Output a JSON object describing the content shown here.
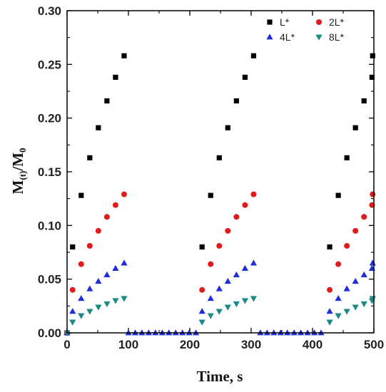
{
  "chart_data": {
    "type": "scatter",
    "xlabel": "Time, s",
    "ylabel_main": "M",
    "ylabel_sub1": "(t)",
    "ylabel_mid": "/M",
    "ylabel_sub2": "0",
    "xlim": [
      0,
      500
    ],
    "ylim": [
      0,
      0.3
    ],
    "xticks": [
      "0",
      "100",
      "200",
      "300",
      "400",
      "500"
    ],
    "yticks": [
      "0.00",
      "0.05",
      "0.10",
      "0.15",
      "0.20",
      "0.25",
      "0.30"
    ],
    "legend_position": "top-right",
    "series": [
      {
        "name": "L*",
        "marker": "square",
        "color": "#000000",
        "points": [
          [
            0,
            0
          ],
          [
            9,
            0.08
          ],
          [
            23,
            0.128
          ],
          [
            37,
            0.163
          ],
          [
            51,
            0.191
          ],
          [
            65,
            0.216
          ],
          [
            79,
            0.238
          ],
          [
            93,
            0.258
          ],
          [
            220,
            0.08
          ],
          [
            234,
            0.128
          ],
          [
            248,
            0.163
          ],
          [
            262,
            0.191
          ],
          [
            276,
            0.216
          ],
          [
            290,
            0.238
          ],
          [
            304,
            0.258
          ],
          [
            428,
            0.08
          ],
          [
            442,
            0.128
          ],
          [
            456,
            0.163
          ],
          [
            470,
            0.191
          ],
          [
            484,
            0.216
          ],
          [
            497,
            0.238
          ],
          [
            498,
            0.258
          ]
        ]
      },
      {
        "name": "2L*",
        "marker": "circle",
        "color": "#e01b1b",
        "points": [
          [
            0,
            0
          ],
          [
            9,
            0.04
          ],
          [
            23,
            0.064
          ],
          [
            37,
            0.081
          ],
          [
            51,
            0.095
          ],
          [
            65,
            0.108
          ],
          [
            79,
            0.119
          ],
          [
            93,
            0.129
          ],
          [
            220,
            0.04
          ],
          [
            234,
            0.064
          ],
          [
            248,
            0.081
          ],
          [
            262,
            0.095
          ],
          [
            276,
            0.108
          ],
          [
            290,
            0.119
          ],
          [
            304,
            0.129
          ],
          [
            428,
            0.04
          ],
          [
            442,
            0.064
          ],
          [
            456,
            0.081
          ],
          [
            470,
            0.095
          ],
          [
            484,
            0.108
          ],
          [
            497,
            0.119
          ],
          [
            498,
            0.129
          ]
        ]
      },
      {
        "name": "4L*",
        "marker": "triangle-up",
        "color": "#1f2fd6",
        "points": [
          [
            0,
            0
          ],
          [
            9,
            0.02
          ],
          [
            23,
            0.032
          ],
          [
            37,
            0.041
          ],
          [
            51,
            0.048
          ],
          [
            65,
            0.054
          ],
          [
            79,
            0.06
          ],
          [
            93,
            0.065
          ],
          [
            220,
            0.02
          ],
          [
            234,
            0.032
          ],
          [
            248,
            0.041
          ],
          [
            262,
            0.048
          ],
          [
            276,
            0.054
          ],
          [
            290,
            0.06
          ],
          [
            304,
            0.065
          ],
          [
            428,
            0.02
          ],
          [
            442,
            0.032
          ],
          [
            456,
            0.041
          ],
          [
            470,
            0.048
          ],
          [
            484,
            0.054
          ],
          [
            497,
            0.06
          ],
          [
            498,
            0.065
          ]
        ]
      },
      {
        "name": "8L*",
        "marker": "triangle-down",
        "color": "#1a8a86",
        "points": [
          [
            0,
            0
          ],
          [
            9,
            0.01
          ],
          [
            23,
            0.016
          ],
          [
            37,
            0.02
          ],
          [
            51,
            0.024
          ],
          [
            65,
            0.027
          ],
          [
            79,
            0.03
          ],
          [
            93,
            0.032
          ],
          [
            220,
            0.01
          ],
          [
            234,
            0.016
          ],
          [
            248,
            0.02
          ],
          [
            262,
            0.024
          ],
          [
            276,
            0.027
          ],
          [
            290,
            0.03
          ],
          [
            304,
            0.032
          ],
          [
            428,
            0.01
          ],
          [
            442,
            0.016
          ],
          [
            456,
            0.02
          ],
          [
            470,
            0.024
          ],
          [
            484,
            0.027
          ],
          [
            497,
            0.03
          ],
          [
            498,
            0.032
          ]
        ]
      },
      {
        "name": "",
        "marker": "triangle-up",
        "color": "#1f2fd6",
        "points": [
          [
            100,
            0
          ],
          [
            111,
            0
          ],
          [
            122,
            0
          ],
          [
            133,
            0
          ],
          [
            144,
            0
          ],
          [
            155,
            0
          ],
          [
            166,
            0
          ],
          [
            177,
            0
          ],
          [
            188,
            0
          ],
          [
            199,
            0
          ],
          [
            210,
            0
          ],
          [
            315,
            0
          ],
          [
            326,
            0
          ],
          [
            337,
            0
          ],
          [
            348,
            0
          ],
          [
            359,
            0
          ],
          [
            370,
            0
          ],
          [
            381,
            0
          ],
          [
            392,
            0
          ],
          [
            403,
            0
          ],
          [
            414,
            0
          ]
        ]
      }
    ]
  }
}
